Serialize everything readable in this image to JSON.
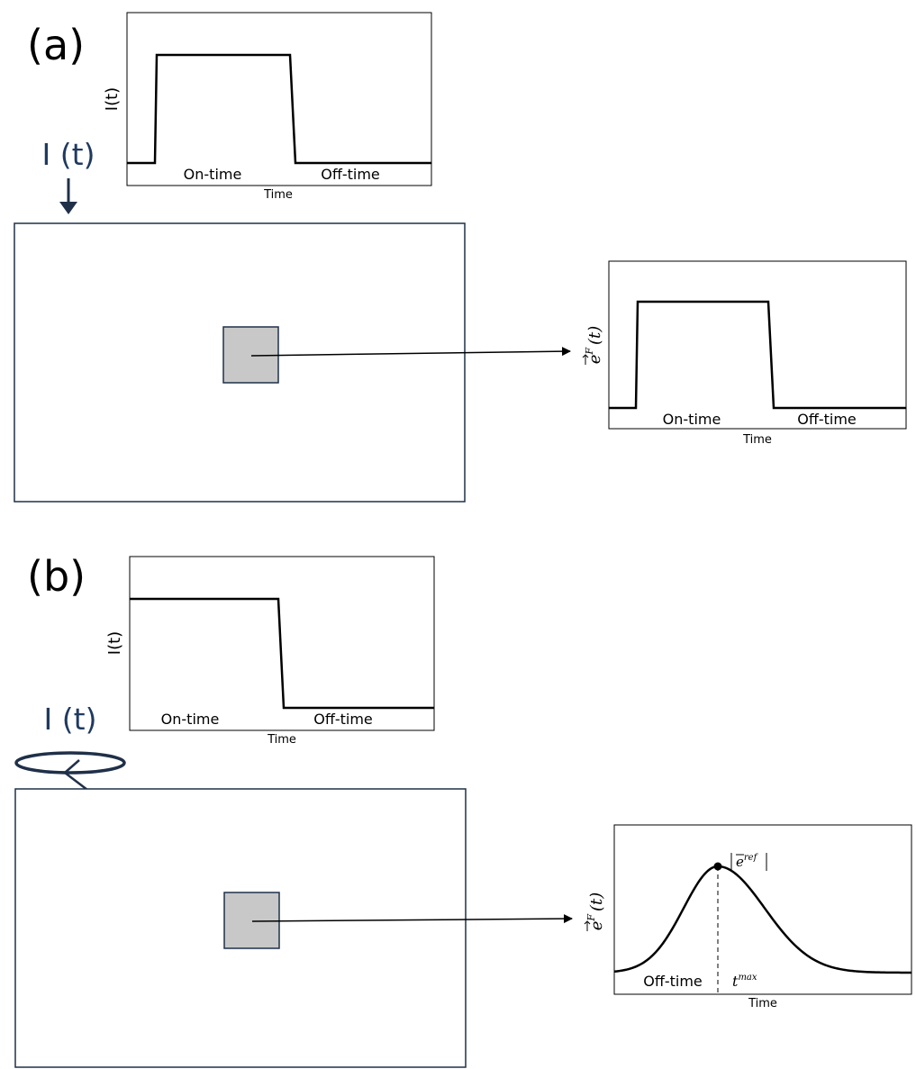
{
  "panel_a": {
    "label": "(a)",
    "current_label": "I (t)",
    "input_plot": {
      "ylabel": "I(t)",
      "xlabel": "Time",
      "on_label": "On-time",
      "off_label": "Off-time"
    },
    "output_plot": {
      "ylabel_base": "e",
      "ylabel_sup": "F",
      "ylabel_arg": "(t)",
      "xlabel": "Time",
      "on_label": "On-time",
      "off_label": "Off-time"
    }
  },
  "panel_b": {
    "label": "(b)",
    "current_label": "I (t)",
    "input_plot": {
      "ylabel": "I(t)",
      "xlabel": "Time",
      "on_label": "On-time",
      "off_label": "Off-time"
    },
    "output_plot": {
      "ylabel_base": "e",
      "ylabel_sup": "F",
      "ylabel_arg": "(t)",
      "xlabel": "Time",
      "off_label": "Off-time",
      "tmax_base": "t",
      "tmax_sup": "max",
      "peak_base": "e",
      "peak_sup": "ref"
    }
  },
  "colors": {
    "line": "#000000",
    "frame": "#1f3048",
    "element_fill": "#c8c8c8",
    "current_text": "#1f3a5f"
  }
}
